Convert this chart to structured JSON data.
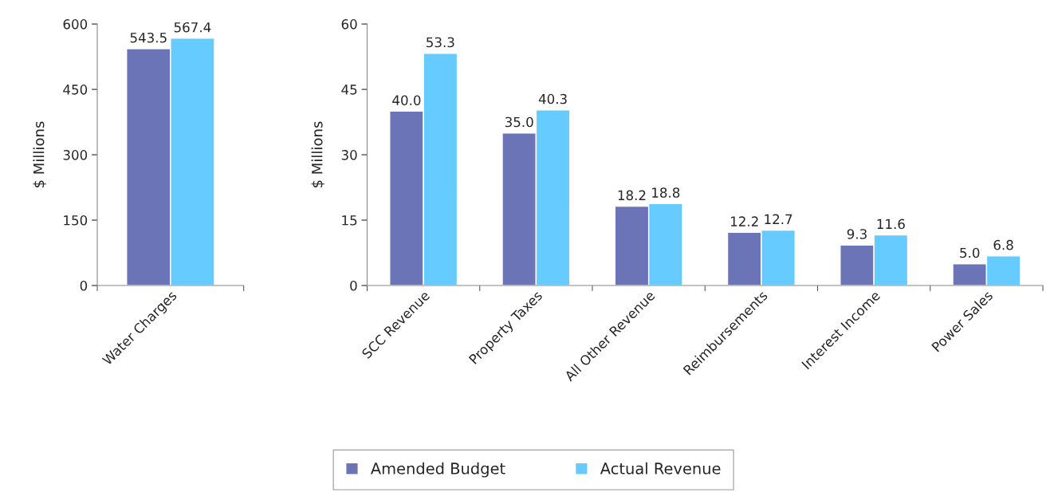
{
  "chart_data": [
    {
      "type": "bar",
      "categories": [
        "Water Charges"
      ],
      "ylabel": "$ Millions",
      "ylim": [
        0,
        600
      ],
      "yticks": [
        0,
        150,
        300,
        450,
        600
      ],
      "grid": false,
      "legend": "bottom",
      "series": [
        {
          "name": "Amended Budget",
          "color": "#6b74b6",
          "values": [
            543.5
          ],
          "value_labels": [
            "543.5"
          ]
        },
        {
          "name": "Actual Revenue",
          "color": "#66ccff",
          "values": [
            567.4
          ],
          "value_labels": [
            "567.4"
          ]
        }
      ]
    },
    {
      "type": "bar",
      "categories": [
        "SCC Revenue",
        "Property Taxes",
        "All Other Revenue",
        "Reimbursements",
        "Interest Income",
        "Power Sales"
      ],
      "ylabel": "$ Millions",
      "ylim": [
        0,
        60
      ],
      "yticks": [
        0,
        15,
        30,
        45,
        60
      ],
      "grid": false,
      "legend": "bottom",
      "series": [
        {
          "name": "Amended Budget",
          "color": "#6b74b6",
          "values": [
            40.0,
            35.0,
            18.2,
            12.2,
            9.3,
            5.0
          ],
          "value_labels": [
            "40.0",
            "35.0",
            "18.2",
            "12.2",
            "9.3",
            "5.0"
          ]
        },
        {
          "name": "Actual Revenue",
          "color": "#66ccff",
          "values": [
            53.3,
            40.3,
            18.8,
            12.7,
            11.6,
            6.8
          ],
          "value_labels": [
            "53.3",
            "40.3",
            "18.8",
            "12.7",
            "11.6",
            "6.8"
          ]
        }
      ]
    }
  ]
}
